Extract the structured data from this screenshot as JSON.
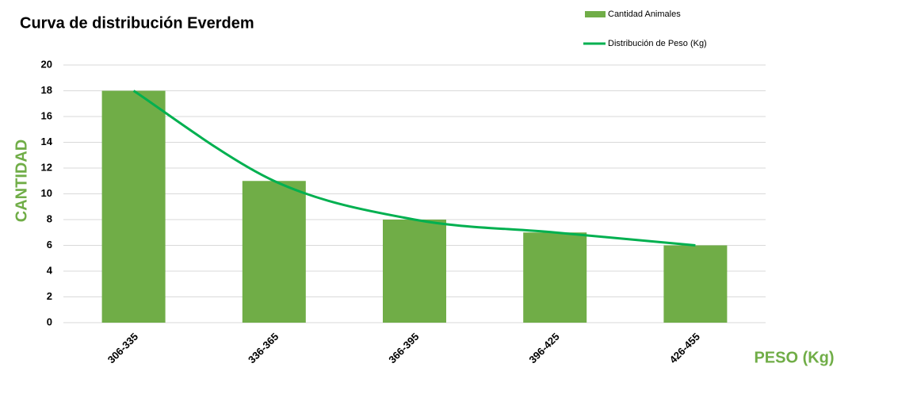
{
  "chart_data": {
    "type": "bar",
    "title": "Curva de distribución Everdem",
    "x_label": "PESO (Kg)",
    "y_label": "CANTIDAD",
    "categories": [
      "306-335",
      "336-365",
      "366-395",
      "396-425",
      "426-455"
    ],
    "series": [
      {
        "name": "Cantidad Animales",
        "type": "bar",
        "color": "#70ad47",
        "values": [
          18,
          11,
          8,
          7,
          6
        ]
      },
      {
        "name": "Distribución de Peso (Kg)",
        "type": "line",
        "smooth": true,
        "color": "#00b050",
        "values": [
          18,
          11,
          8,
          7,
          6
        ]
      }
    ],
    "ylim": [
      0,
      20
    ],
    "yticks": [
      0,
      2,
      4,
      6,
      8,
      10,
      12,
      14,
      16,
      18,
      20
    ],
    "grid": true,
    "legend": "top-right"
  }
}
